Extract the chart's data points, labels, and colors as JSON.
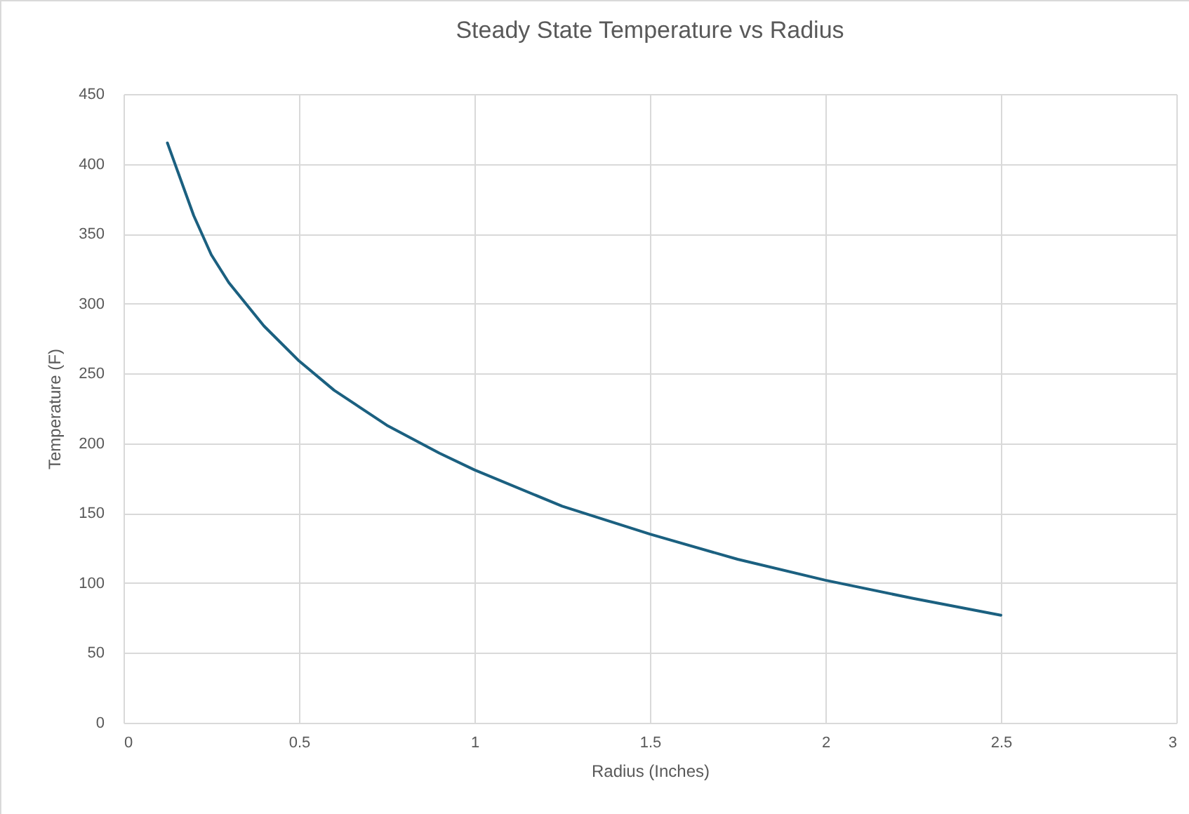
{
  "chart_data": {
    "type": "line",
    "title": "Steady State Temperature vs Radius",
    "xlabel": "Radius (Inches)",
    "ylabel": "Temperature (F)",
    "x": [
      0.125,
      0.2,
      0.25,
      0.3,
      0.4,
      0.5,
      0.6,
      0.75,
      0.9,
      1,
      1.25,
      1.5,
      1.75,
      2,
      2.25,
      2.5
    ],
    "series": [
      {
        "color": "#1b6080",
        "values": [
          415,
          363,
          335,
          315,
          284,
          259,
          238,
          213,
          193,
          181,
          155,
          135,
          117,
          102,
          89,
          77
        ]
      }
    ],
    "xlim": [
      0,
      3
    ],
    "xticks": [
      0,
      0.5,
      1,
      1.5,
      2,
      2.5,
      3
    ],
    "ylim": [
      0,
      450
    ],
    "yticks": [
      0,
      50,
      100,
      150,
      200,
      250,
      300,
      350,
      400,
      450
    ],
    "grid": true,
    "legend": false,
    "marker": "none",
    "line_style": "solid"
  }
}
